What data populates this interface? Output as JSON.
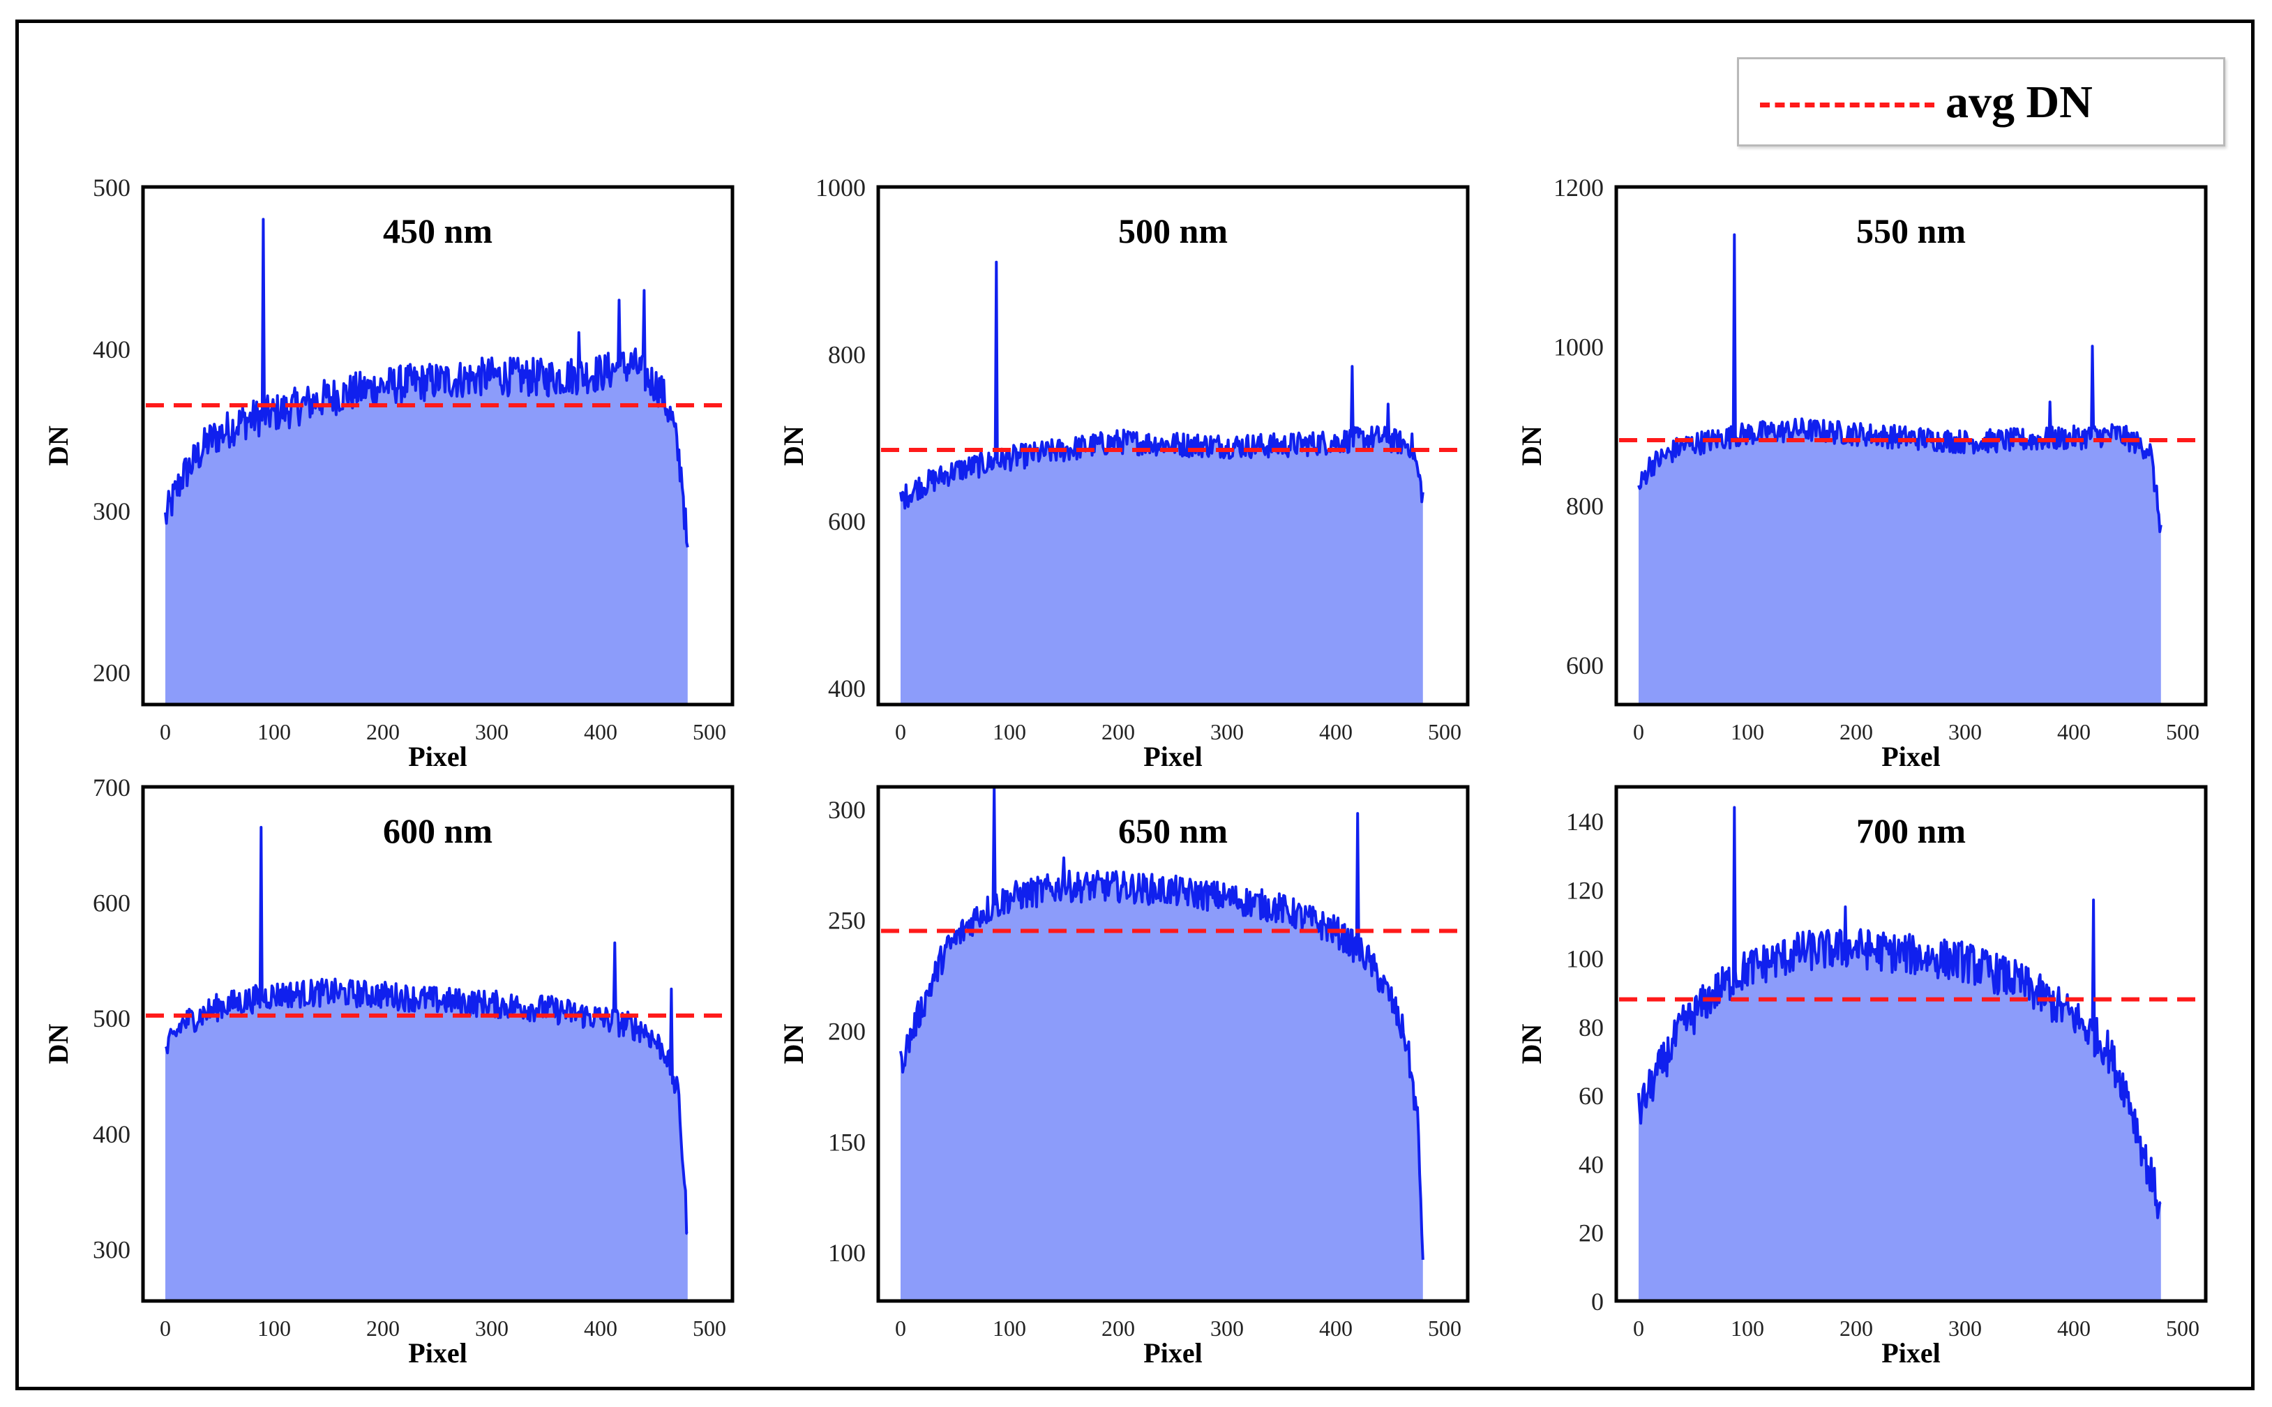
{
  "legend": {
    "label": "avg DN",
    "line_color": "#ff1a1a",
    "style": "dashed"
  },
  "colors": {
    "fill": "#8c9cfa",
    "line": "#1020ee",
    "avg": "#ff1a1a"
  },
  "chart_data": [
    {
      "type": "area",
      "title": "450 nm",
      "xlabel": "Pixel",
      "ylabel": "DN",
      "xlim": [
        0,
        500
      ],
      "ylim": [
        180,
        500
      ],
      "xticks": [
        0,
        100,
        200,
        300,
        400,
        500
      ],
      "yticks": [
        200,
        300,
        400,
        500
      ],
      "avg": 365,
      "series": [
        {
          "values_profile": [
            [
              0,
              295
            ],
            [
              15,
              320
            ],
            [
              40,
              343
            ],
            [
              70,
              355
            ],
            [
              100,
              360
            ],
            [
              150,
              370
            ],
            [
              200,
              377
            ],
            [
              250,
              380
            ],
            [
              300,
              383
            ],
            [
              350,
              382
            ],
            [
              400,
              385
            ],
            [
              430,
              390
            ],
            [
              455,
              375
            ],
            [
              466,
              355
            ],
            [
              475,
              320
            ],
            [
              480,
              270
            ]
          ],
          "noise": 12,
          "spikes": [
            [
              90,
              480
            ],
            [
              380,
              410
            ],
            [
              417,
              430
            ],
            [
              440,
              436
            ]
          ]
        }
      ],
      "grid": false
    },
    {
      "type": "area",
      "title": "500 nm",
      "xlabel": "Pixel",
      "ylabel": "DN",
      "xlim": [
        0,
        500
      ],
      "ylim": [
        380,
        1000
      ],
      "xticks": [
        0,
        100,
        200,
        300,
        400,
        500
      ],
      "yticks": [
        400,
        600,
        800,
        1000
      ],
      "avg": 685,
      "series": [
        {
          "values_profile": [
            [
              0,
              625
            ],
            [
              15,
              640
            ],
            [
              50,
              660
            ],
            [
              100,
              675
            ],
            [
              150,
              685
            ],
            [
              200,
              695
            ],
            [
              250,
              692
            ],
            [
              300,
              690
            ],
            [
              350,
              690
            ],
            [
              400,
              695
            ],
            [
              440,
              700
            ],
            [
              470,
              690
            ],
            [
              480,
              630
            ]
          ],
          "noise": 15,
          "spikes": [
            [
              88,
              910
            ],
            [
              415,
              785
            ],
            [
              448,
              740
            ]
          ]
        }
      ],
      "grid": false
    },
    {
      "type": "area",
      "title": "550 nm",
      "xlabel": "Pixel",
      "ylabel": "DN",
      "xlim": [
        0,
        500
      ],
      "ylim": [
        550,
        1200
      ],
      "xticks": [
        0,
        100,
        200,
        300,
        400,
        500
      ],
      "yticks": [
        600,
        800,
        1000,
        1200
      ],
      "avg": 882,
      "series": [
        {
          "values_profile": [
            [
              0,
              820
            ],
            [
              10,
              850
            ],
            [
              40,
              875
            ],
            [
              100,
              890
            ],
            [
              150,
              895
            ],
            [
              200,
              890
            ],
            [
              250,
              885
            ],
            [
              300,
              880
            ],
            [
              350,
              882
            ],
            [
              400,
              885
            ],
            [
              440,
              890
            ],
            [
              470,
              870
            ],
            [
              480,
              770
            ]
          ],
          "noise": 15,
          "spikes": [
            [
              88,
              1140
            ],
            [
              417,
              1000
            ],
            [
              378,
              930
            ]
          ]
        }
      ],
      "grid": false
    },
    {
      "type": "area",
      "title": "600 nm",
      "xlabel": "Pixel",
      "ylabel": "DN",
      "xlim": [
        0,
        500
      ],
      "ylim": [
        255,
        700
      ],
      "xticks": [
        0,
        100,
        200,
        300,
        400,
        500
      ],
      "yticks": [
        300,
        400,
        500,
        600,
        700
      ],
      "avg": 502,
      "series": [
        {
          "values_profile": [
            [
              0,
              470
            ],
            [
              15,
              495
            ],
            [
              50,
              510
            ],
            [
              100,
              520
            ],
            [
              150,
              522
            ],
            [
              200,
              520
            ],
            [
              250,
              515
            ],
            [
              300,
              512
            ],
            [
              350,
              508
            ],
            [
              400,
              500
            ],
            [
              440,
              490
            ],
            [
              460,
              470
            ],
            [
              472,
              430
            ],
            [
              480,
              310
            ]
          ],
          "noise": 12,
          "spikes": [
            [
              88,
              665
            ],
            [
              413,
              565
            ],
            [
              465,
              525
            ]
          ]
        }
      ],
      "grid": false
    },
    {
      "type": "area",
      "title": "650 nm",
      "xlabel": "Pixel",
      "ylabel": "DN",
      "xlim": [
        0,
        500
      ],
      "ylim": [
        78,
        310
      ],
      "xticks": [
        0,
        100,
        200,
        300,
        400,
        500
      ],
      "yticks": [
        100,
        150,
        200,
        250,
        300
      ],
      "avg": 245,
      "series": [
        {
          "values_profile": [
            [
              0,
              185
            ],
            [
              15,
              205
            ],
            [
              40,
              235
            ],
            [
              70,
              252
            ],
            [
              100,
              260
            ],
            [
              150,
              265
            ],
            [
              200,
              265
            ],
            [
              250,
              263
            ],
            [
              300,
              260
            ],
            [
              350,
              255
            ],
            [
              400,
              245
            ],
            [
              430,
              232
            ],
            [
              450,
              215
            ],
            [
              465,
              195
            ],
            [
              475,
              160
            ],
            [
              480,
              100
            ]
          ],
          "noise": 7,
          "spikes": [
            [
              86,
              310
            ],
            [
              420,
              298
            ],
            [
              150,
              278
            ]
          ]
        }
      ],
      "grid": false
    },
    {
      "type": "area",
      "title": "700 nm",
      "xlabel": "Pixel",
      "ylabel": "DN",
      "xlim": [
        0,
        500
      ],
      "ylim": [
        0,
        150
      ],
      "xticks": [
        0,
        100,
        200,
        300,
        400,
        500
      ],
      "yticks": [
        0,
        20,
        40,
        60,
        80,
        100,
        120,
        140
      ],
      "avg": 88,
      "series": [
        {
          "values_profile": [
            [
              0,
              55
            ],
            [
              15,
              65
            ],
            [
              40,
              80
            ],
            [
              70,
              90
            ],
            [
              100,
              97
            ],
            [
              150,
              102
            ],
            [
              200,
              103
            ],
            [
              250,
              101
            ],
            [
              300,
              99
            ],
            [
              350,
              93
            ],
            [
              400,
              83
            ],
            [
              430,
              74
            ],
            [
              450,
              60
            ],
            [
              465,
              42
            ],
            [
              475,
              32
            ],
            [
              480,
              25
            ]
          ],
          "noise": 6,
          "spikes": [
            [
              88,
              144
            ],
            [
              418,
              117
            ],
            [
              190,
              115
            ]
          ]
        }
      ],
      "grid": false
    }
  ]
}
